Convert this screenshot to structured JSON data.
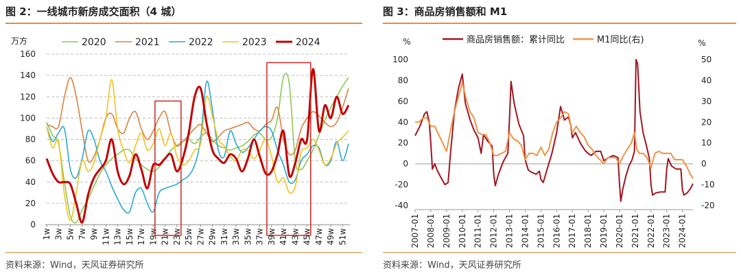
{
  "left": {
    "title": "图 2：一线城市新房成交面积（4 城）",
    "source": "资料来源：Wind，天风证券研究所",
    "chart_data": {
      "type": "line",
      "ylabel": "万方",
      "ylim": [
        0,
        160
      ],
      "yticks": [
        0,
        20,
        40,
        60,
        80,
        100,
        120,
        140,
        160
      ],
      "x_tick_labels": [
        "1w",
        "3w",
        "5w",
        "7w",
        "9w",
        "11w",
        "13w",
        "15w",
        "17w",
        "19w",
        "21w",
        "23w",
        "25w",
        "27w",
        "29w",
        "31w",
        "33w",
        "35w",
        "37w",
        "39w",
        "41w",
        "43w",
        "45w",
        "47w",
        "49w",
        "51w"
      ],
      "x_count": 52,
      "grid": "horizontal-dashed",
      "legend": "top",
      "series": [
        {
          "name": "2020",
          "color": "#8fc752",
          "width": 1.6,
          "values": [
            96,
            84,
            76,
            40,
            8,
            2,
            14,
            24,
            36,
            48,
            56,
            62,
            66,
            70,
            70,
            62,
            56,
            52,
            50,
            54,
            62,
            70,
            74,
            78,
            80,
            76,
            82,
            86,
            80,
            74,
            72,
            70,
            72,
            74,
            78,
            84,
            86,
            80,
            82,
            100,
            138,
            132,
            60,
            52,
            60,
            70,
            84,
            98,
            110,
            120,
            130,
            138
          ]
        },
        {
          "name": "2021",
          "color": "#d9823f",
          "width": 1.6,
          "values": [
            94,
            92,
            92,
            120,
            138,
            120,
            88,
            60,
            64,
            80,
            100,
            104,
            90,
            86,
            100,
            106,
            90,
            80,
            88,
            100,
            106,
            86,
            74,
            78,
            84,
            90,
            94,
            86,
            78,
            82,
            88,
            90,
            92,
            94,
            96,
            90,
            88,
            94,
            98,
            110,
            80,
            66,
            70,
            90,
            100,
            106,
            102,
            96,
            92,
            96,
            110,
            128
          ]
        },
        {
          "name": "2022",
          "color": "#2aa7d6",
          "width": 1.6,
          "values": [
            92,
            78,
            86,
            90,
            52,
            44,
            62,
            88,
            80,
            60,
            50,
            36,
            24,
            14,
            12,
            30,
            34,
            20,
            12,
            30,
            34,
            36,
            38,
            42,
            46,
            56,
            80,
            134,
            108,
            70,
            64,
            88,
            76,
            68,
            72,
            80,
            88,
            92,
            88,
            70,
            56,
            40,
            42,
            60,
            66,
            74,
            72,
            56,
            60,
            78,
            60,
            76
          ]
        },
        {
          "name": "2023",
          "color": "#f1c31e",
          "width": 1.6,
          "values": [
            92,
            72,
            78,
            28,
            4,
            30,
            60,
            50,
            58,
            80,
            100,
            136,
            90,
            70,
            58,
            74,
            86,
            70,
            76,
            90,
            74,
            86,
            64,
            56,
            60,
            70,
            76,
            120,
            102,
            80,
            74,
            64,
            60,
            70,
            70,
            62,
            70,
            80,
            64,
            40,
            44,
            30,
            36,
            68,
            72,
            80,
            70,
            56,
            62,
            76,
            82,
            88
          ]
        },
        {
          "name": "2024",
          "color": "#c00000",
          "width": 3,
          "values": [
            62,
            48,
            40,
            40,
            38,
            20,
            2,
            28,
            44,
            52,
            60,
            80,
            50,
            38,
            46,
            66,
            52,
            34,
            56,
            56,
            62,
            66,
            50,
            62,
            86,
            120,
            128,
            96,
            70,
            62,
            58,
            66,
            62,
            50,
            62,
            80,
            64,
            48,
            50,
            66,
            88,
            46,
            58,
            80,
            80,
            146,
            88,
            112,
            100,
            120,
            104,
            112
          ]
        }
      ]
    }
  },
  "right": {
    "title": "图 3：商品房销售额和 M1",
    "source": "资料来源：Wind，天风证券研究所",
    "chart_data": {
      "type": "line",
      "ylabel_left": "%",
      "ylabel_right": "%",
      "ylim_left": [
        -40,
        100
      ],
      "ylim_right": [
        -20,
        50
      ],
      "yticks_left": [
        -40,
        -20,
        0,
        20,
        40,
        60,
        80,
        100
      ],
      "yticks_right": [
        -20,
        -10,
        0,
        10,
        20,
        30,
        40,
        50
      ],
      "x_range": [
        2007,
        2024.67
      ],
      "x_tick_labels": [
        "2007-01",
        "2008-01",
        "2009-01",
        "2010-01",
        "2011-01",
        "2012-01",
        "2013-01",
        "2014-01",
        "2015-01",
        "2016-01",
        "2017-01",
        "2018-01",
        "2019-01",
        "2020-01",
        "2021-01",
        "2022-01",
        "2023-01",
        "2024-01"
      ],
      "legend": "top",
      "series": [
        {
          "name": "商品房销售额：累计同比",
          "axis": "left",
          "color": "#a01420",
          "width": 2,
          "points": [
            [
              2007.0,
              27
            ],
            [
              2007.3,
              36
            ],
            [
              2007.6,
              48
            ],
            [
              2007.75,
              50
            ],
            [
              2007.9,
              40
            ],
            [
              2008.0,
              20
            ],
            [
              2008.1,
              -5
            ],
            [
              2008.25,
              0
            ],
            [
              2008.4,
              -6
            ],
            [
              2008.6,
              -12
            ],
            [
              2008.9,
              -20
            ],
            [
              2009.1,
              -18
            ],
            [
              2009.25,
              10
            ],
            [
              2009.5,
              50
            ],
            [
              2009.75,
              72
            ],
            [
              2010.0,
              86
            ],
            [
              2010.2,
              58
            ],
            [
              2010.5,
              42
            ],
            [
              2010.75,
              32
            ],
            [
              2011.0,
              25
            ],
            [
              2011.2,
              10
            ],
            [
              2011.35,
              28
            ],
            [
              2011.6,
              22
            ],
            [
              2011.9,
              17
            ],
            [
              2012.0,
              -10
            ],
            [
              2012.1,
              -21
            ],
            [
              2012.3,
              -10
            ],
            [
              2012.6,
              2
            ],
            [
              2012.9,
              10
            ],
            [
              2013.0,
              42
            ],
            [
              2013.1,
              79
            ],
            [
              2013.3,
              58
            ],
            [
              2013.6,
              38
            ],
            [
              2013.9,
              27
            ],
            [
              2014.0,
              4
            ],
            [
              2014.2,
              -6
            ],
            [
              2014.4,
              -8
            ],
            [
              2014.7,
              -10
            ],
            [
              2014.9,
              -7
            ],
            [
              2015.0,
              -15
            ],
            [
              2015.15,
              -18
            ],
            [
              2015.4,
              -5
            ],
            [
              2015.7,
              10
            ],
            [
              2016.0,
              30
            ],
            [
              2016.25,
              55
            ],
            [
              2016.5,
              42
            ],
            [
              2016.75,
              45
            ],
            [
              2016.9,
              37
            ],
            [
              2017.0,
              25
            ],
            [
              2017.2,
              30
            ],
            [
              2017.5,
              20
            ],
            [
              2017.8,
              13
            ],
            [
              2018.0,
              10
            ],
            [
              2018.2,
              8
            ],
            [
              2018.5,
              12
            ],
            [
              2018.8,
              12
            ],
            [
              2019.0,
              3
            ],
            [
              2019.3,
              6
            ],
            [
              2019.6,
              8
            ],
            [
              2019.9,
              6
            ],
            [
              2020.0,
              -20
            ],
            [
              2020.08,
              -36
            ],
            [
              2020.2,
              -25
            ],
            [
              2020.4,
              -12
            ],
            [
              2020.6,
              -2
            ],
            [
              2020.8,
              4
            ],
            [
              2020.95,
              12
            ],
            [
              2021.05,
              100
            ],
            [
              2021.15,
              96
            ],
            [
              2021.3,
              50
            ],
            [
              2021.5,
              30
            ],
            [
              2021.7,
              18
            ],
            [
              2021.9,
              5
            ],
            [
              2022.0,
              -20
            ],
            [
              2022.1,
              -30
            ],
            [
              2022.3,
              -28
            ],
            [
              2022.6,
              -27
            ],
            [
              2022.9,
              -27
            ],
            [
              2023.0,
              -5
            ],
            [
              2023.1,
              5
            ],
            [
              2023.3,
              -2
            ],
            [
              2023.6,
              -5
            ],
            [
              2023.9,
              -5
            ],
            [
              2024.0,
              -25
            ],
            [
              2024.1,
              -30
            ],
            [
              2024.3,
              -28
            ],
            [
              2024.5,
              -24
            ],
            [
              2024.67,
              -19
            ]
          ]
        },
        {
          "name": "M1同比(右)",
          "axis": "right",
          "color": "#ef9244",
          "width": 2,
          "points": [
            [
              2007.0,
              20
            ],
            [
              2007.25,
              20
            ],
            [
              2007.5,
              22
            ],
            [
              2007.75,
              22
            ],
            [
              2008.0,
              18
            ],
            [
              2008.25,
              18
            ],
            [
              2008.5,
              14
            ],
            [
              2008.75,
              10
            ],
            [
              2009.0,
              6
            ],
            [
              2009.25,
              16
            ],
            [
              2009.5,
              25
            ],
            [
              2009.75,
              32
            ],
            [
              2010.0,
              39
            ],
            [
              2010.25,
              31
            ],
            [
              2010.5,
              25
            ],
            [
              2010.75,
              22
            ],
            [
              2011.0,
              15
            ],
            [
              2011.25,
              14
            ],
            [
              2011.5,
              14
            ],
            [
              2011.75,
              10
            ],
            [
              2012.0,
              4
            ],
            [
              2012.25,
              4
            ],
            [
              2012.5,
              5
            ],
            [
              2012.75,
              6
            ],
            [
              2013.0,
              15
            ],
            [
              2013.25,
              12
            ],
            [
              2013.5,
              11
            ],
            [
              2013.75,
              9
            ],
            [
              2014.0,
              2
            ],
            [
              2014.25,
              5
            ],
            [
              2014.5,
              5
            ],
            [
              2014.75,
              4
            ],
            [
              2015.0,
              8
            ],
            [
              2015.25,
              4
            ],
            [
              2015.5,
              7
            ],
            [
              2015.75,
              15
            ],
            [
              2016.0,
              20
            ],
            [
              2016.25,
              22
            ],
            [
              2016.5,
              25
            ],
            [
              2016.75,
              24
            ],
            [
              2017.0,
              15
            ],
            [
              2017.25,
              18
            ],
            [
              2017.5,
              15
            ],
            [
              2017.75,
              13
            ],
            [
              2018.0,
              9
            ],
            [
              2018.25,
              7
            ],
            [
              2018.5,
              4
            ],
            [
              2018.75,
              2
            ],
            [
              2019.0,
              0
            ],
            [
              2019.25,
              3
            ],
            [
              2019.5,
              3
            ],
            [
              2019.75,
              3
            ],
            [
              2020.0,
              0
            ],
            [
              2020.25,
              4
            ],
            [
              2020.5,
              7
            ],
            [
              2020.75,
              10
            ],
            [
              2020.95,
              15
            ],
            [
              2021.1,
              7
            ],
            [
              2021.25,
              5
            ],
            [
              2021.5,
              5
            ],
            [
              2021.75,
              3
            ],
            [
              2022.0,
              -2
            ],
            [
              2022.25,
              5
            ],
            [
              2022.5,
              6
            ],
            [
              2022.75,
              5
            ],
            [
              2023.0,
              5
            ],
            [
              2023.25,
              5
            ],
            [
              2023.5,
              2
            ],
            [
              2023.75,
              2
            ],
            [
              2024.0,
              2
            ],
            [
              2024.25,
              -1
            ],
            [
              2024.5,
              -5
            ],
            [
              2024.67,
              -7
            ]
          ]
        }
      ]
    }
  }
}
